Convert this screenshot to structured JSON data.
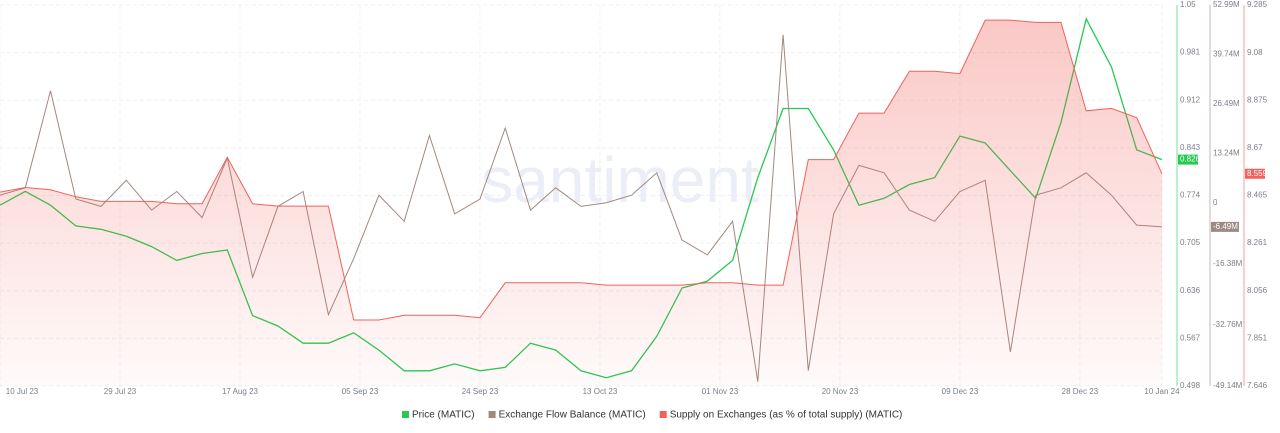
{
  "chart_data": {
    "type": "multi-axis-line",
    "watermark": "santiment",
    "x": [
      "2023-07-10",
      "2023-07-14",
      "2023-07-18",
      "2023-07-22",
      "2023-07-26",
      "2023-07-30",
      "2023-08-03",
      "2023-08-07",
      "2023-08-11",
      "2023-08-15",
      "2023-08-19",
      "2023-08-23",
      "2023-08-27",
      "2023-08-31",
      "2023-09-04",
      "2023-09-08",
      "2023-09-12",
      "2023-09-16",
      "2023-09-20",
      "2023-09-24",
      "2023-09-28",
      "2023-10-02",
      "2023-10-06",
      "2023-10-10",
      "2023-10-14",
      "2023-10-18",
      "2023-10-22",
      "2023-10-26",
      "2023-10-30",
      "2023-11-03",
      "2023-11-07",
      "2023-11-11",
      "2023-11-15",
      "2023-11-19",
      "2023-11-23",
      "2023-11-27",
      "2023-12-01",
      "2023-12-05",
      "2023-12-09",
      "2023-12-13",
      "2023-12-17",
      "2023-12-21",
      "2023-12-25",
      "2023-12-29",
      "2024-01-02",
      "2024-01-06",
      "2024-01-10"
    ],
    "xlim": [
      "2023-07-10",
      "2024-01-10"
    ],
    "xticks": [
      {
        "value": "2023-07-10",
        "label": "10 Jul 23"
      },
      {
        "value": "2023-07-29",
        "label": "29 Jul 23"
      },
      {
        "value": "2023-08-17",
        "label": "17 Aug 23"
      },
      {
        "value": "2023-09-05",
        "label": "05 Sep 23"
      },
      {
        "value": "2023-09-24",
        "label": "24 Sep 23"
      },
      {
        "value": "2023-10-13",
        "label": "13 Oct 23"
      },
      {
        "value": "2023-11-01",
        "label": "01 Nov 23"
      },
      {
        "value": "2023-11-20",
        "label": "20 Nov 23"
      },
      {
        "value": "2023-12-09",
        "label": "09 Dec 23"
      },
      {
        "value": "2023-12-28",
        "label": "28 Dec 23"
      },
      {
        "value": "2024-01-10",
        "label": "10 Jan 24"
      }
    ],
    "ylim": [
      0.498,
      1.05
    ],
    "yticks": [
      1.05,
      0.981,
      0.912,
      0.843,
      0.774,
      0.705,
      0.636,
      0.567,
      0.498
    ],
    "y2lim": [
      -49.14,
      52.99
    ],
    "y2ticks": [
      {
        "value": 52.99,
        "label": "52.99M"
      },
      {
        "value": 39.74,
        "label": "39.74M"
      },
      {
        "value": 26.49,
        "label": "26.49M"
      },
      {
        "value": 13.24,
        "label": "13.24M"
      },
      0,
      {
        "value": -16.38,
        "label": "-16.38M"
      },
      {
        "value": -32.76,
        "label": "-32.76M"
      },
      {
        "value": -49.14,
        "label": "-49.14M"
      }
    ],
    "y3lim": [
      7.646,
      9.285
    ],
    "y3ticks": [
      9.285,
      9.08,
      8.875,
      8.67,
      8.465,
      8.261,
      8.056,
      7.851,
      7.646
    ],
    "grid": true,
    "series": [
      {
        "name": "Price (MATIC)",
        "color": "#26c953",
        "axis": "y",
        "kind": "line",
        "badge": "0.826",
        "values": [
          0.76,
          0.78,
          0.76,
          0.73,
          0.725,
          0.715,
          0.7,
          0.68,
          0.69,
          0.695,
          0.6,
          0.585,
          0.56,
          0.56,
          0.575,
          0.55,
          0.52,
          0.52,
          0.53,
          0.52,
          0.525,
          0.56,
          0.55,
          0.52,
          0.51,
          0.52,
          0.57,
          0.64,
          0.65,
          0.68,
          0.8,
          0.9,
          0.9,
          0.84,
          0.76,
          0.77,
          0.79,
          0.8,
          0.86,
          0.85,
          0.81,
          0.77,
          0.88,
          1.03,
          0.96,
          0.84,
          0.826
        ]
      },
      {
        "name": "Exchange Flow Balance (MATIC)",
        "color": "#a1887f",
        "axis": "y2",
        "kind": "line",
        "badge": "-6.49M",
        "values": [
          2,
          4,
          30,
          1,
          -1,
          6,
          -2,
          3,
          -4,
          12,
          -20,
          -1,
          3,
          -30,
          -15,
          2,
          -5,
          18,
          -3,
          1,
          20,
          -2,
          4,
          -1,
          0,
          2,
          8,
          -10,
          -14,
          -5,
          -48,
          45,
          -45,
          -3,
          10,
          8,
          -2,
          -5,
          3,
          6,
          -40,
          2,
          4,
          8,
          2,
          -6,
          -6.49
        ]
      },
      {
        "name": "Supply on Exchanges (as % of total supply) (MATIC)",
        "color": "#f0625b",
        "axis": "y3",
        "kind": "area",
        "badge": "8.559",
        "values": [
          8.48,
          8.5,
          8.49,
          8.46,
          8.44,
          8.44,
          8.44,
          8.43,
          8.43,
          8.63,
          8.43,
          8.42,
          8.42,
          8.42,
          7.93,
          7.93,
          7.95,
          7.95,
          7.95,
          7.94,
          8.09,
          8.09,
          8.09,
          8.09,
          8.08,
          8.08,
          8.08,
          8.08,
          8.09,
          8.09,
          8.08,
          8.08,
          8.62,
          8.62,
          8.82,
          8.82,
          9.0,
          9.0,
          8.99,
          9.22,
          9.22,
          9.21,
          9.21,
          8.83,
          8.84,
          8.8,
          8.559
        ]
      }
    ]
  }
}
